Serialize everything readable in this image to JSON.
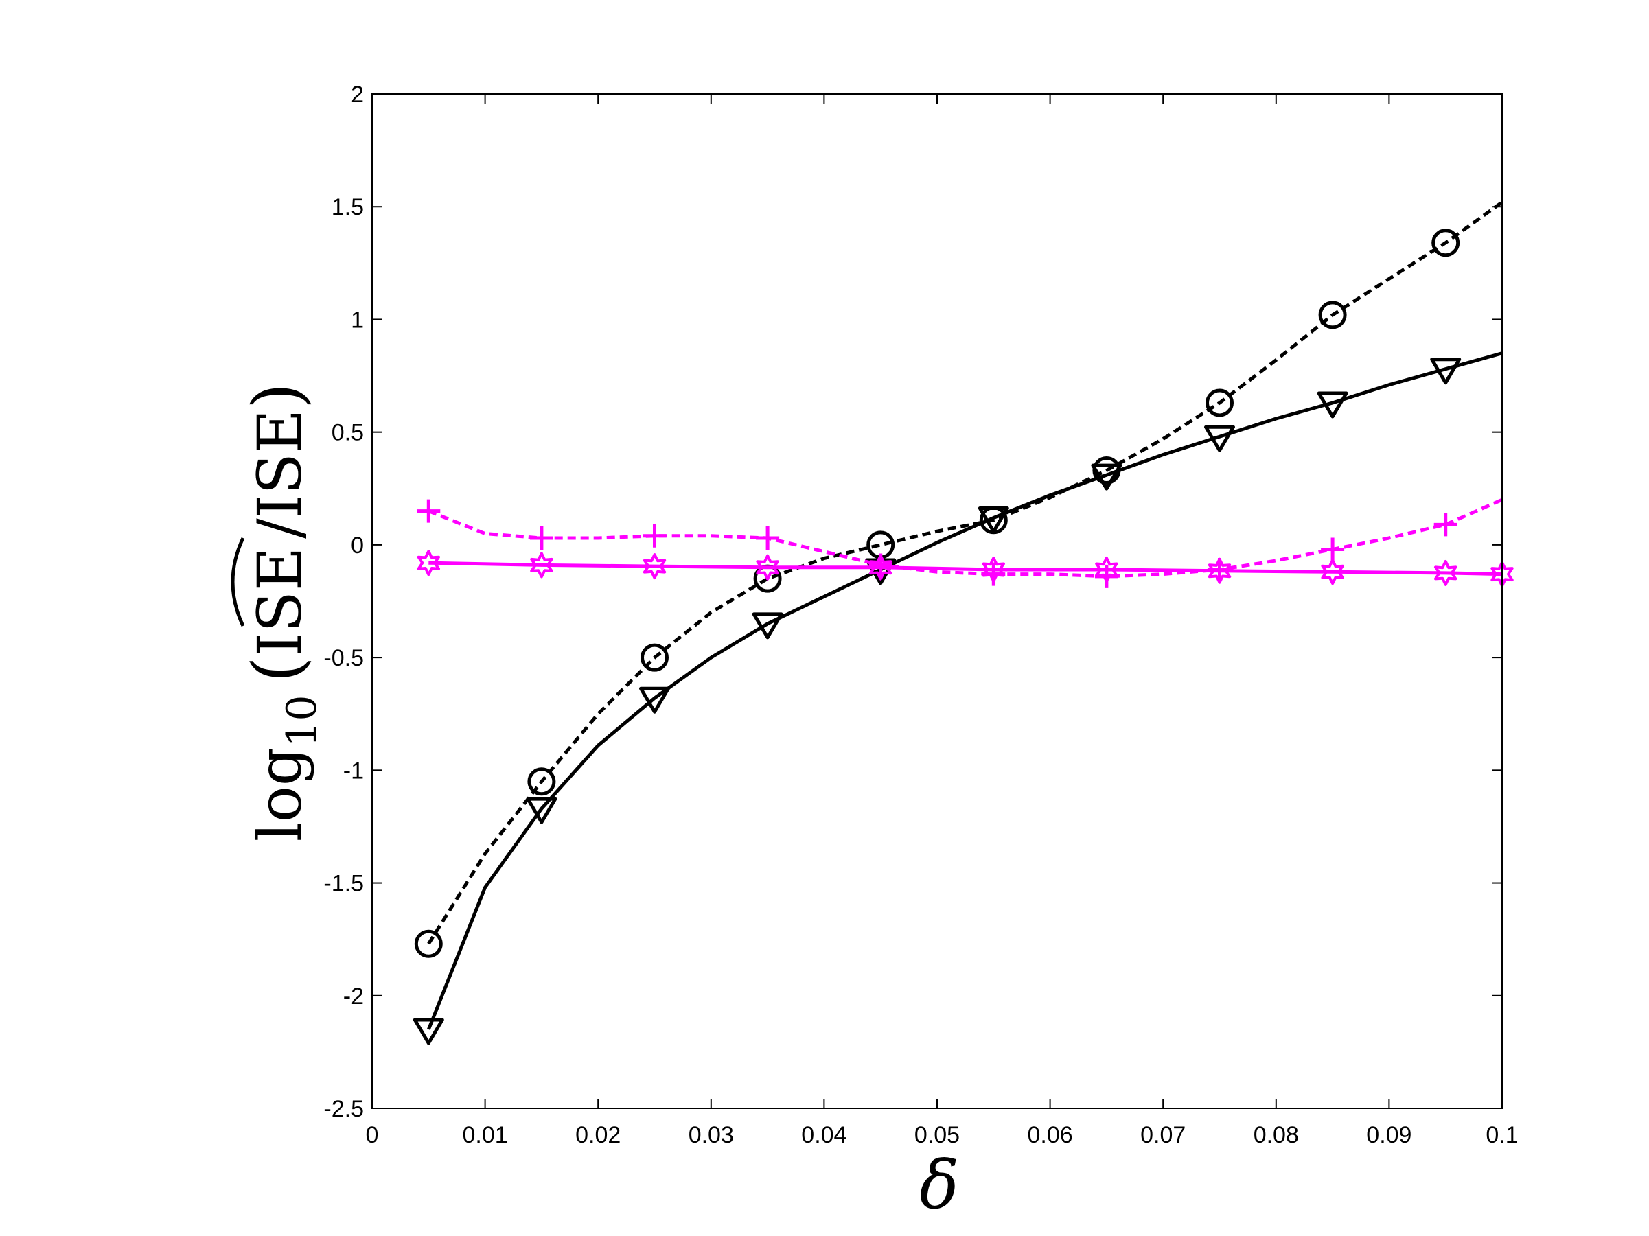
{
  "chart_data": {
    "type": "line",
    "xlabel": "δ",
    "ylabel": {
      "prefix": "log",
      "subscript": "10",
      "open": "(",
      "numerator": "ISE",
      "slash": "/",
      "denominator": "ISE",
      "close": ")"
    },
    "xlim": [
      0,
      0.1
    ],
    "ylim": [
      -2.5,
      2
    ],
    "xticks": [
      "0",
      "0.01",
      "0.02",
      "0.03",
      "0.04",
      "0.05",
      "0.06",
      "0.07",
      "0.08",
      "0.09",
      "0.1"
    ],
    "yticks": [
      "-2.5",
      "-2",
      "-1.5",
      "-1",
      "-0.5",
      "0",
      "0.5",
      "1",
      "1.5",
      "2"
    ],
    "grid": false,
    "series": [
      {
        "color": "#000000",
        "line": "dashed",
        "marker": "circle",
        "x": [
          0.005,
          0.01,
          0.015,
          0.02,
          0.025,
          0.03,
          0.035,
          0.04,
          0.045,
          0.05,
          0.055,
          0.06,
          0.065,
          0.07,
          0.075,
          0.08,
          0.085,
          0.09,
          0.095,
          0.1
        ],
        "y": [
          -1.77,
          -1.37,
          -1.05,
          -0.75,
          -0.5,
          -0.3,
          -0.15,
          -0.06,
          0.0,
          0.06,
          0.11,
          0.21,
          0.33,
          0.47,
          0.63,
          0.82,
          1.02,
          1.18,
          1.34,
          1.52
        ]
      },
      {
        "color": "#000000",
        "line": "solid",
        "marker": "triangle-down",
        "x": [
          0.005,
          0.01,
          0.015,
          0.02,
          0.025,
          0.03,
          0.035,
          0.04,
          0.045,
          0.05,
          0.055,
          0.06,
          0.065,
          0.07,
          0.075,
          0.08,
          0.085,
          0.09,
          0.095,
          0.1
        ],
        "y": [
          -2.15,
          -1.52,
          -1.17,
          -0.89,
          -0.68,
          -0.5,
          -0.35,
          -0.23,
          -0.11,
          0.01,
          0.12,
          0.22,
          0.31,
          0.4,
          0.48,
          0.56,
          0.63,
          0.71,
          0.78,
          0.85
        ]
      },
      {
        "color": "#ff00ff",
        "line": "dashed",
        "marker": "plus",
        "x": [
          0.005,
          0.01,
          0.015,
          0.02,
          0.025,
          0.03,
          0.035,
          0.04,
          0.045,
          0.05,
          0.055,
          0.06,
          0.065,
          0.07,
          0.075,
          0.08,
          0.085,
          0.09,
          0.095,
          0.1
        ],
        "y": [
          0.15,
          0.05,
          0.03,
          0.03,
          0.04,
          0.04,
          0.03,
          -0.03,
          -0.09,
          -0.12,
          -0.13,
          -0.13,
          -0.14,
          -0.13,
          -0.11,
          -0.07,
          -0.02,
          0.03,
          0.09,
          0.2
        ]
      },
      {
        "color": "#ff00ff",
        "line": "solid",
        "marker": "hexagram",
        "x": [
          0.005,
          0.015,
          0.025,
          0.035,
          0.045,
          0.055,
          0.065,
          0.075,
          0.085,
          0.095,
          0.1
        ],
        "y": [
          -0.08,
          -0.09,
          -0.095,
          -0.1,
          -0.1,
          -0.11,
          -0.11,
          -0.115,
          -0.12,
          -0.125,
          -0.13
        ]
      }
    ]
  }
}
